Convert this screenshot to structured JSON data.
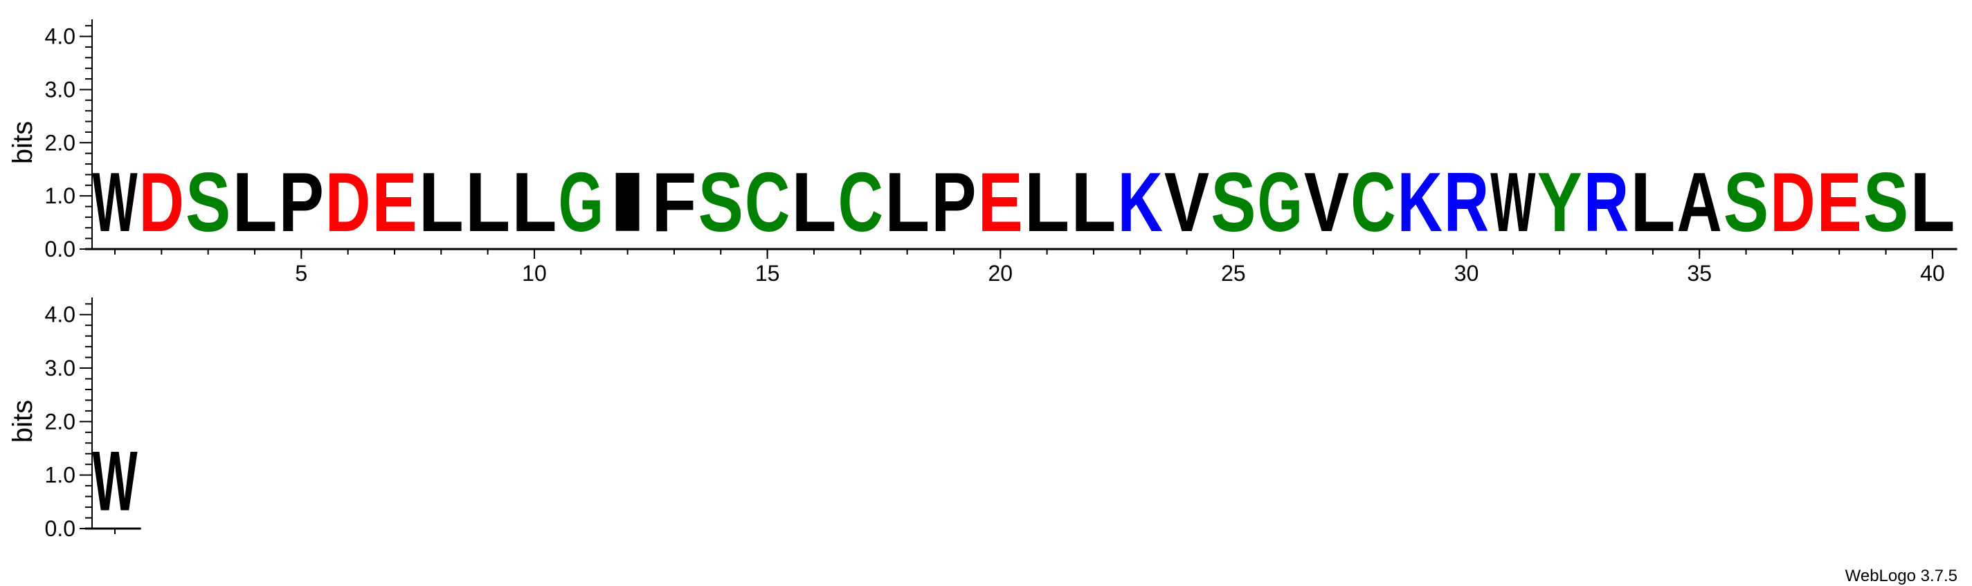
{
  "chart_data": [
    {
      "type": "sequence-logo",
      "ylabel": "bits",
      "yticks": [
        "0.0",
        "1.0",
        "2.0",
        "3.0",
        "4.0"
      ],
      "ylim": [
        0,
        4.32
      ],
      "positions": [
        1,
        2,
        3,
        4,
        5,
        6,
        7,
        8,
        9,
        10,
        11,
        12,
        13,
        14,
        15,
        16,
        17,
        18,
        19,
        20,
        21,
        22,
        23,
        24,
        25,
        26,
        27,
        28,
        29,
        30,
        31,
        32,
        33,
        34,
        35,
        36,
        37,
        38,
        39,
        40
      ],
      "xticks": [
        "5",
        "10",
        "15",
        "20",
        "25",
        "30",
        "35",
        "40"
      ],
      "letters": [
        "W",
        "D",
        "S",
        "L",
        "P",
        "D",
        "E",
        "L",
        "L",
        "L",
        "G",
        "I",
        "F",
        "S",
        "C",
        "L",
        "C",
        "L",
        "P",
        "E",
        "L",
        "L",
        "K",
        "V",
        "S",
        "G",
        "V",
        "C",
        "K",
        "R",
        "W",
        "Y",
        "R",
        "L",
        "A",
        "S",
        "D",
        "E",
        "S",
        "L"
      ],
      "heights_bits": [
        1.77,
        1.77,
        1.77,
        1.77,
        1.77,
        1.77,
        1.77,
        1.77,
        1.77,
        1.77,
        1.77,
        1.77,
        1.77,
        1.77,
        1.77,
        1.77,
        1.77,
        1.77,
        1.77,
        1.77,
        1.77,
        1.77,
        1.77,
        1.77,
        1.77,
        1.77,
        1.77,
        1.77,
        1.77,
        1.77,
        1.77,
        1.77,
        1.77,
        1.77,
        1.77,
        1.77,
        1.77,
        1.77,
        1.77,
        1.77
      ]
    },
    {
      "type": "sequence-logo",
      "ylabel": "bits",
      "yticks": [
        "0.0",
        "1.0",
        "2.0",
        "3.0",
        "4.0"
      ],
      "ylim": [
        0,
        4.32
      ],
      "positions": [
        41
      ],
      "xticks": [],
      "letters": [
        "W"
      ],
      "heights_bits": [
        1.77
      ]
    }
  ],
  "colors": {
    "acidic": "#ff0000",
    "basic": "#0000ff",
    "polar": "#008000",
    "hydrophobic": "#000000"
  },
  "color_groups": {
    "acidic": "DE",
    "basic": "KRH",
    "polar": "GSTYCQN",
    "hydrophobic": "AVLIPWFM"
  },
  "credit": "WebLogo 3.7.5"
}
